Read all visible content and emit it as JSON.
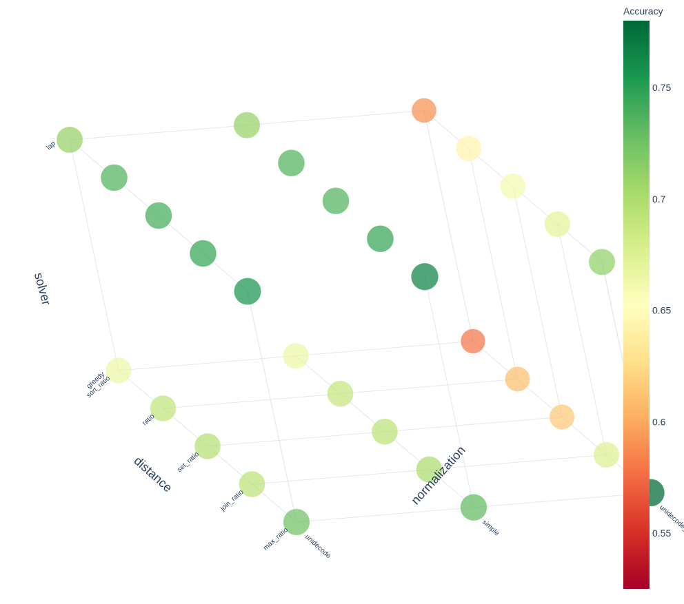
{
  "chart_data": {
    "type": "scatter3d",
    "title": "",
    "axes": {
      "x": {
        "title": "distance",
        "ticks": [
          "sort_ratio",
          "ratio",
          "set_ratio",
          "join_ratio",
          "max_ratio"
        ]
      },
      "y": {
        "title": "normalization",
        "ticks": [
          "unidecode",
          "simple",
          "unidecode_metaphone"
        ]
      },
      "z": {
        "title": "solver",
        "ticks": [
          "greedy",
          "lap"
        ]
      }
    },
    "colorbar": {
      "title": "Accuracy",
      "range": [
        0.525,
        0.78
      ],
      "ticks": [
        "0.55",
        "0.6",
        "0.65",
        "0.7",
        "0.75"
      ],
      "tick_values": [
        0.55,
        0.6,
        0.65,
        0.7,
        0.75
      ],
      "colorscale": [
        "#a50026",
        "#d73027",
        "#f46d43",
        "#fdae61",
        "#fee08b",
        "#ffffbf",
        "#d9ef8b",
        "#a6d96a",
        "#66bd63",
        "#1a9850",
        "#006837"
      ]
    },
    "points": [
      {
        "distance": "sort_ratio",
        "normalization": "unidecode",
        "solver": "greedy",
        "accuracy": 0.665
      },
      {
        "distance": "ratio",
        "normalization": "unidecode",
        "solver": "greedy",
        "accuracy": 0.69
      },
      {
        "distance": "set_ratio",
        "normalization": "unidecode",
        "solver": "greedy",
        "accuracy": 0.695
      },
      {
        "distance": "join_ratio",
        "normalization": "unidecode",
        "solver": "greedy",
        "accuracy": 0.693
      },
      {
        "distance": "max_ratio",
        "normalization": "unidecode",
        "solver": "greedy",
        "accuracy": 0.725
      },
      {
        "distance": "sort_ratio",
        "normalization": "simple",
        "solver": "greedy",
        "accuracy": 0.665
      },
      {
        "distance": "ratio",
        "normalization": "simple",
        "solver": "greedy",
        "accuracy": 0.688
      },
      {
        "distance": "set_ratio",
        "normalization": "simple",
        "solver": "greedy",
        "accuracy": 0.693
      },
      {
        "distance": "join_ratio",
        "normalization": "simple",
        "solver": "greedy",
        "accuracy": 0.7
      },
      {
        "distance": "max_ratio",
        "normalization": "simple",
        "solver": "greedy",
        "accuracy": 0.73
      },
      {
        "distance": "sort_ratio",
        "normalization": "unidecode_metaphone",
        "solver": "greedy",
        "accuracy": 0.58
      },
      {
        "distance": "ratio",
        "normalization": "unidecode_metaphone",
        "solver": "greedy",
        "accuracy": 0.61
      },
      {
        "distance": "set_ratio",
        "normalization": "unidecode_metaphone",
        "solver": "greedy",
        "accuracy": 0.615
      },
      {
        "distance": "join_ratio",
        "normalization": "unidecode_metaphone",
        "solver": "greedy",
        "accuracy": 0.675
      },
      {
        "distance": "max_ratio",
        "normalization": "unidecode_metaphone",
        "solver": "greedy",
        "accuracy": 0.78
      },
      {
        "distance": "sort_ratio",
        "normalization": "unidecode",
        "solver": "lap",
        "accuracy": 0.71
      },
      {
        "distance": "ratio",
        "normalization": "unidecode",
        "solver": "lap",
        "accuracy": 0.735
      },
      {
        "distance": "set_ratio",
        "normalization": "unidecode",
        "solver": "lap",
        "accuracy": 0.74
      },
      {
        "distance": "join_ratio",
        "normalization": "unidecode",
        "solver": "lap",
        "accuracy": 0.745
      },
      {
        "distance": "max_ratio",
        "normalization": "unidecode",
        "solver": "lap",
        "accuracy": 0.755
      },
      {
        "distance": "sort_ratio",
        "normalization": "simple",
        "solver": "lap",
        "accuracy": 0.71
      },
      {
        "distance": "ratio",
        "normalization": "simple",
        "solver": "lap",
        "accuracy": 0.735
      },
      {
        "distance": "set_ratio",
        "normalization": "simple",
        "solver": "lap",
        "accuracy": 0.735
      },
      {
        "distance": "join_ratio",
        "normalization": "simple",
        "solver": "lap",
        "accuracy": 0.745
      },
      {
        "distance": "max_ratio",
        "normalization": "simple",
        "solver": "lap",
        "accuracy": 0.765
      },
      {
        "distance": "sort_ratio",
        "normalization": "unidecode_metaphone",
        "solver": "lap",
        "accuracy": 0.59
      },
      {
        "distance": "ratio",
        "normalization": "unidecode_metaphone",
        "solver": "lap",
        "accuracy": 0.645
      },
      {
        "distance": "set_ratio",
        "normalization": "unidecode_metaphone",
        "solver": "lap",
        "accuracy": 0.66
      },
      {
        "distance": "join_ratio",
        "normalization": "unidecode_metaphone",
        "solver": "lap",
        "accuracy": 0.67
      },
      {
        "distance": "max_ratio",
        "normalization": "unidecode_metaphone",
        "solver": "lap",
        "accuracy": 0.712
      }
    ]
  }
}
